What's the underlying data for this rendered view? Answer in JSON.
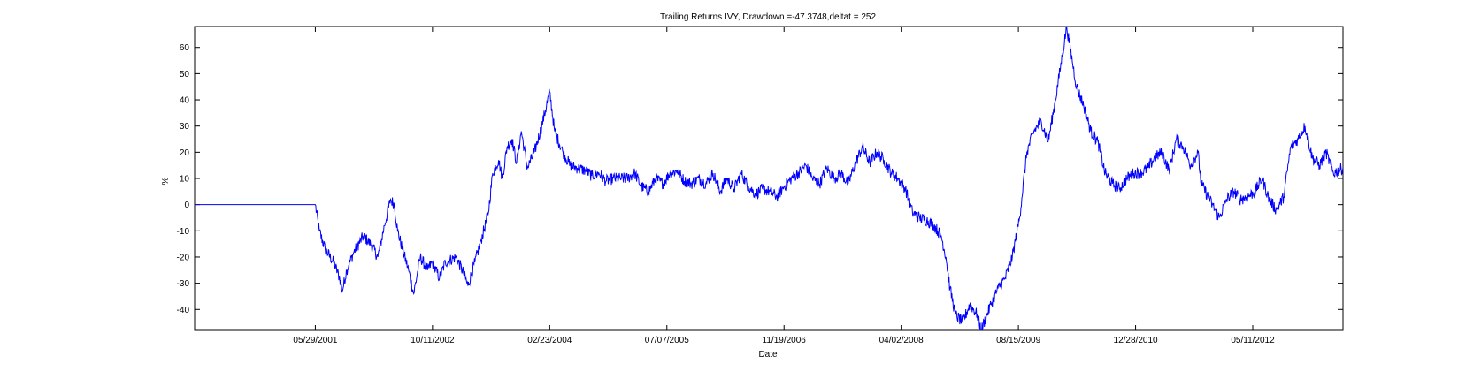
{
  "chart_data": {
    "type": "line",
    "title": "Trailing Returns IVY, Drawdown =-47.3748,deltat = 252",
    "xlabel": "Date",
    "ylabel": "%",
    "xlim": [
      "1999-12-31",
      "2013-05-31"
    ],
    "ylim": [
      -48,
      68
    ],
    "grid": false,
    "x_ticks": [
      "05/29/2001",
      "10/11/2002",
      "02/23/2004",
      "07/07/2005",
      "11/19/2006",
      "04/02/2008",
      "08/15/2009",
      "12/28/2010",
      "05/11/2012"
    ],
    "y_ticks": [
      -40,
      -30,
      -20,
      -10,
      0,
      10,
      20,
      30,
      40,
      50,
      60
    ],
    "line_color": "#0000ff",
    "series": [
      {
        "x": [
          "1999-12-31",
          "2001-05-29",
          "2001-06-15",
          "2001-07-10",
          "2001-08-15",
          "2001-09-10",
          "2001-09-21",
          "2001-10-10",
          "2001-11-10",
          "2001-12-20",
          "2002-01-20",
          "2002-02-20",
          "2002-03-20",
          "2002-04-15",
          "2002-05-01",
          "2002-05-15",
          "2002-06-05",
          "2002-07-01",
          "2002-07-23",
          "2002-08-20",
          "2002-09-20",
          "2002-10-09",
          "2002-11-10",
          "2002-12-05",
          "2003-01-20",
          "2003-02-20",
          "2003-03-11",
          "2003-04-10",
          "2003-05-05",
          "2003-06-05",
          "2003-06-25",
          "2003-07-20",
          "2003-08-05",
          "2003-08-25",
          "2003-09-15",
          "2003-10-05",
          "2003-10-25",
          "2003-11-20",
          "2003-12-20",
          "2004-01-20",
          "2004-02-23",
          "2004-03-15",
          "2004-04-20",
          "2004-05-20",
          "2004-06-20",
          "2004-07-25",
          "2004-08-20",
          "2004-09-20",
          "2004-10-20",
          "2004-11-20",
          "2004-12-20",
          "2005-01-20",
          "2005-02-20",
          "2005-03-20",
          "2005-04-20",
          "2005-05-20",
          "2005-06-20",
          "2005-07-20",
          "2005-08-20",
          "2005-09-20",
          "2005-10-20",
          "2005-11-20",
          "2005-12-20",
          "2006-01-20",
          "2006-02-20",
          "2006-03-20",
          "2006-04-20",
          "2006-05-20",
          "2006-06-20",
          "2006-07-20",
          "2006-08-20",
          "2006-09-20",
          "2006-10-20",
          "2006-11-20",
          "2006-12-20",
          "2007-01-20",
          "2007-02-20",
          "2007-03-20",
          "2007-04-20",
          "2007-05-20",
          "2007-06-20",
          "2007-07-20",
          "2007-08-20",
          "2007-09-20",
          "2007-10-20",
          "2007-11-20",
          "2007-12-20",
          "2008-01-20",
          "2008-02-20",
          "2008-03-20",
          "2008-04-20",
          "2008-05-20",
          "2008-06-20",
          "2008-07-20",
          "2008-08-20",
          "2008-09-20",
          "2008-10-10",
          "2008-10-27",
          "2008-11-20",
          "2008-12-20",
          "2009-01-20",
          "2009-02-20",
          "2009-03-09",
          "2009-04-20",
          "2009-05-20",
          "2009-06-20",
          "2009-07-20",
          "2009-08-20",
          "2009-09-20",
          "2009-10-20",
          "2009-11-20",
          "2009-12-20",
          "2010-01-20",
          "2010-02-20",
          "2010-03-09",
          "2010-04-20",
          "2010-05-20",
          "2010-06-20",
          "2010-07-20",
          "2010-08-20",
          "2010-09-20",
          "2010-10-20",
          "2010-11-20",
          "2010-12-20",
          "2011-01-20",
          "2011-02-20",
          "2011-03-20",
          "2011-04-20",
          "2011-05-20",
          "2011-06-20",
          "2011-07-20",
          "2011-08-20",
          "2011-09-20",
          "2011-10-04",
          "2011-11-20",
          "2011-12-20",
          "2012-01-20",
          "2012-02-20",
          "2012-03-20",
          "2012-04-20",
          "2012-05-20",
          "2012-06-20",
          "2012-07-20",
          "2012-08-20",
          "2012-09-20",
          "2012-10-20",
          "2012-11-20",
          "2012-12-20",
          "2013-01-20",
          "2013-02-20",
          "2013-03-20",
          "2013-04-20",
          "2013-05-31"
        ],
        "y": [
          0,
          0,
          -10,
          -17,
          -22,
          -28,
          -33,
          -25,
          -18,
          -12,
          -15,
          -20,
          -8,
          2,
          0,
          -10,
          -17,
          -25,
          -34,
          -20,
          -25,
          -22,
          -28,
          -22,
          -20,
          -26,
          -31,
          -22,
          -14,
          -4,
          12,
          17,
          10,
          22,
          25,
          16,
          28,
          14,
          20,
          30,
          43,
          28,
          20,
          15,
          14,
          13,
          11,
          12,
          9,
          10,
          10,
          10,
          12,
          7,
          5,
          10,
          8,
          12,
          13,
          9,
          8,
          10,
          8,
          12,
          5,
          10,
          6,
          12,
          7,
          4,
          6,
          5,
          3,
          7,
          10,
          12,
          15,
          10,
          8,
          14,
          10,
          12,
          8,
          16,
          22,
          16,
          20,
          17,
          12,
          10,
          6,
          -3,
          -5,
          -6,
          -8,
          -12,
          -20,
          -32,
          -42,
          -45,
          -38,
          -42,
          -48,
          -38,
          -32,
          -28,
          -20,
          -5,
          20,
          28,
          32,
          24,
          40,
          58,
          68,
          45,
          38,
          28,
          24,
          12,
          8,
          6,
          10,
          12,
          12,
          14,
          18,
          20,
          13,
          25,
          22,
          15,
          20,
          8,
          0,
          -5,
          2,
          5,
          2,
          3,
          5,
          10,
          2,
          -2,
          3,
          22,
          25,
          30,
          18,
          15,
          20,
          12,
          14
        ]
      }
    ]
  }
}
